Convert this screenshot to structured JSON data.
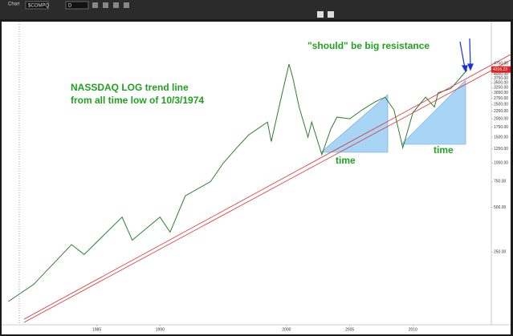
{
  "toolbar": {
    "window_title": "Chart",
    "symbol": "$COMPQ",
    "period": "D"
  },
  "chart_data": {
    "type": "line",
    "log_scale": true,
    "grid": false,
    "x": [
      1978,
      1980,
      1983,
      1984,
      1987,
      1987.8,
      1990,
      1990.8,
      1992,
      1994,
      1995,
      1996,
      1997,
      1998.5,
      1998.8,
      1999.5,
      2000.2,
      2000.5,
      2001,
      2001.7,
      2002,
      2002.8,
      2003.5,
      2004,
      2005,
      2006,
      2007,
      2007.8,
      2008.5,
      2009.2,
      2010,
      2011,
      2011.7,
      2012,
      2013,
      2014.3
    ],
    "series": [
      {
        "name": "$COMPQ",
        "color": "#2e7d32",
        "values": [
          115,
          150,
          280,
          240,
          430,
          300,
          430,
          340,
          600,
          750,
          1000,
          1250,
          1550,
          1900,
          1400,
          2600,
          4700,
          3800,
          2400,
          1500,
          1900,
          1140,
          1700,
          2050,
          2000,
          2300,
          2600,
          2800,
          2300,
          1270,
          2200,
          2800,
          2400,
          3000,
          3200,
          4300
        ]
      }
    ],
    "xlim": [
      1977.6,
      2016.2
    ],
    "xticks": [
      1985,
      1990,
      2000,
      2005,
      2010
    ],
    "ylim": [
      80,
      9000
    ],
    "yticks": [
      {
        "value": 250,
        "label": "250.00"
      },
      {
        "value": 500,
        "label": "500.00"
      },
      {
        "value": 750,
        "label": "750.00"
      },
      {
        "value": 1000,
        "label": "1000.00"
      },
      {
        "value": 1250,
        "label": "1250.00"
      },
      {
        "value": 1500,
        "label": "1500.00"
      },
      {
        "value": 1750,
        "label": "1750.00"
      },
      {
        "value": 2000,
        "label": "2000.00"
      },
      {
        "value": 2250,
        "label": "2250.00"
      },
      {
        "value": 2500,
        "label": "2500.00"
      },
      {
        "value": 2750,
        "label": "2750.00"
      },
      {
        "value": 3000,
        "label": "3000.00"
      },
      {
        "value": 3250,
        "label": "3250.00"
      },
      {
        "value": 3500,
        "label": "3500.00"
      },
      {
        "value": 3750,
        "label": "3750.00"
      },
      {
        "value": 4000,
        "label": "4000.00"
      },
      {
        "value": 4750,
        "label": "4750.00"
      }
    ],
    "last_price": {
      "value": 4316.23,
      "label": "4316.23"
    },
    "annotations": {
      "trend_line_1": "NASSDAQ LOG trend line",
      "trend_line_2": "from all time low of 10/3/1974",
      "resistance": "\"should\" be big resistance",
      "time_1": "time",
      "time_2": "time"
    }
  }
}
